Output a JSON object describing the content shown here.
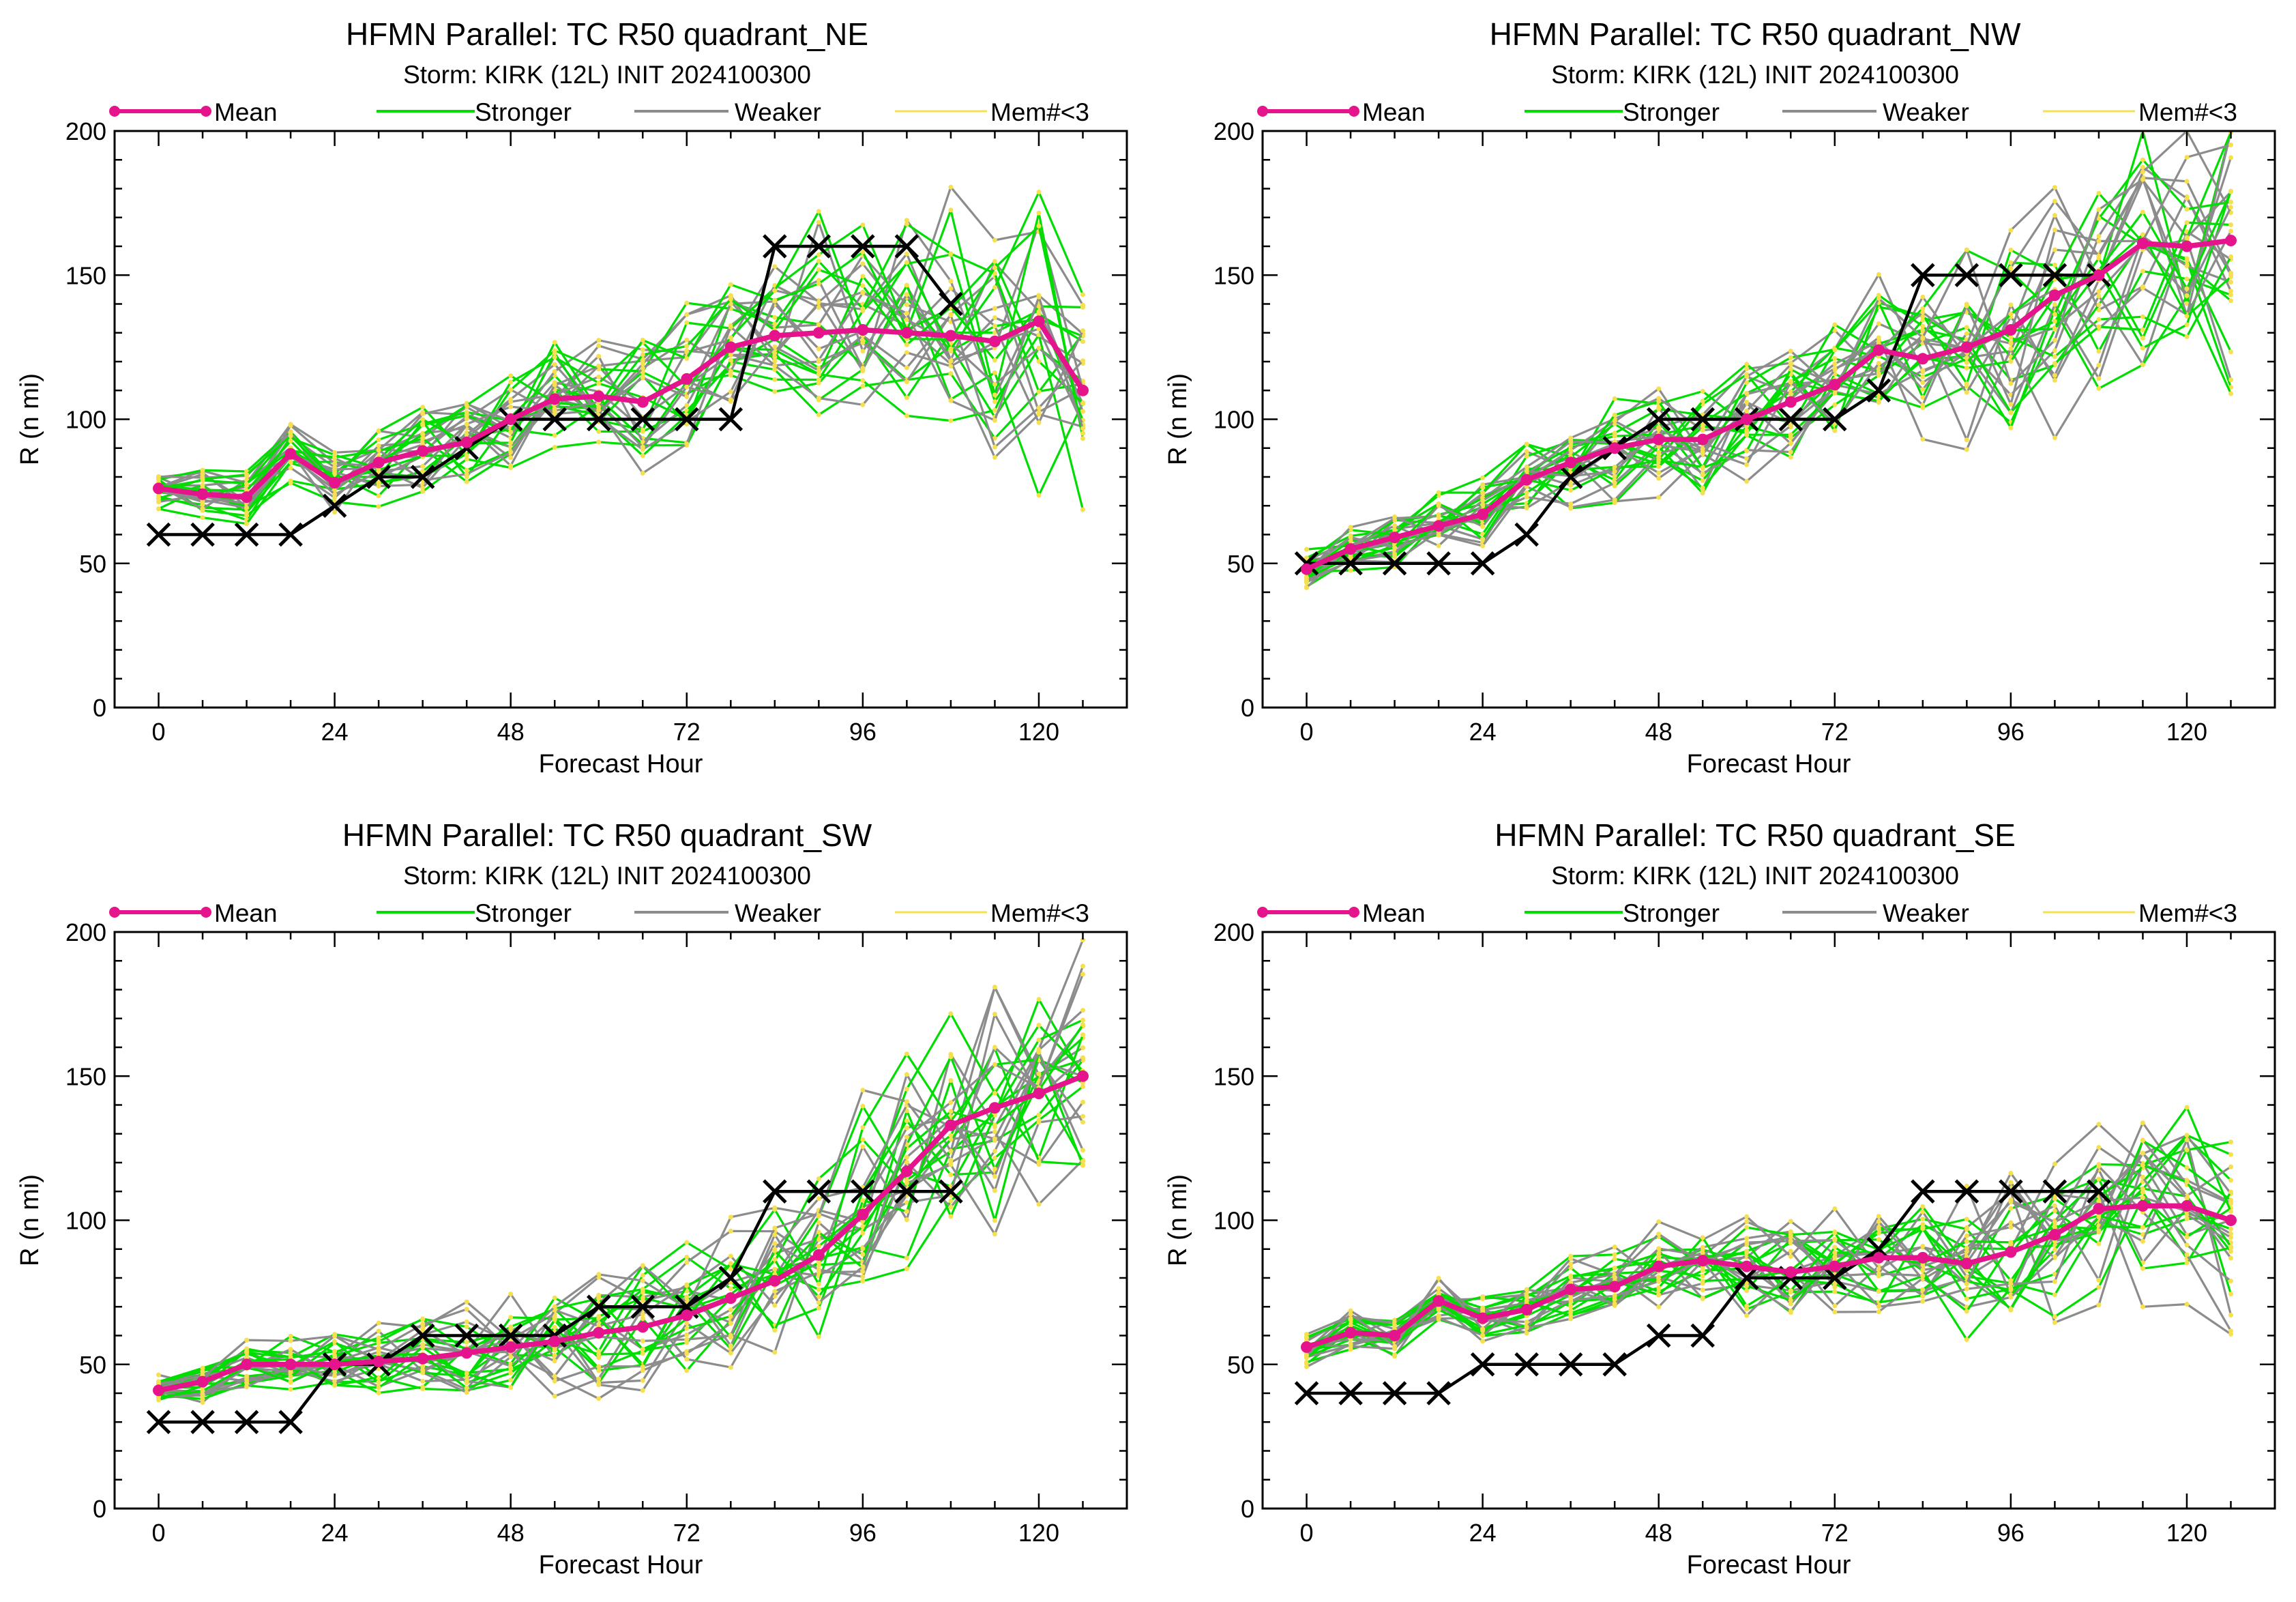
{
  "legend_labels": {
    "mean": "Mean",
    "stronger": "Stronger",
    "weaker": "Weaker",
    "mem": "Mem#<3"
  },
  "colors": {
    "mean": "#e6148c",
    "stronger": "#00dd00",
    "weaker": "#8c8c8c",
    "mem": "#f5e050",
    "best_track": "#000000"
  },
  "chart_data": [
    {
      "type": "line",
      "title": "HFMN Parallel: TC  R50 quadrant_NE",
      "subtitle": "Storm: KIRK (12L) INIT 2024100300",
      "xlabel": "Forecast Hour",
      "ylabel": "R (n mi)",
      "xlim": [
        -6,
        132
      ],
      "ylim": [
        0,
        200
      ],
      "xticks": [
        0,
        24,
        48,
        72,
        96,
        120
      ],
      "yticks": [
        0,
        50,
        100,
        150,
        200
      ],
      "x": [
        0,
        6,
        12,
        18,
        24,
        30,
        36,
        42,
        48,
        54,
        60,
        66,
        72,
        78,
        84,
        90,
        96,
        102,
        108,
        114,
        120,
        126
      ],
      "series": [
        {
          "name": "Mean",
          "values": [
            76,
            74,
            73,
            88,
            78,
            85,
            89,
            92,
            100,
            107,
            108,
            106,
            114,
            125,
            129,
            130,
            131,
            130,
            129,
            127,
            134,
            110
          ]
        }
      ],
      "best_track": {
        "x": [
          0,
          6,
          12,
          18,
          24,
          30,
          36,
          42,
          48,
          54,
          60,
          66,
          72,
          78,
          84,
          90,
          96,
          102,
          108
        ],
        "values": [
          60,
          60,
          60,
          60,
          70,
          80,
          80,
          90,
          100,
          100,
          100,
          100,
          100,
          100,
          160,
          160,
          160,
          160,
          140
        ]
      },
      "ensemble": {
        "members": 26,
        "spread_start": 5,
        "spread_end": 30,
        "spread_max": 45,
        "seed": 11
      }
    },
    {
      "type": "line",
      "title": "HFMN Parallel: TC  R50 quadrant_NW",
      "subtitle": "Storm: KIRK (12L) INIT 2024100300",
      "xlabel": "Forecast Hour",
      "ylabel": "R (n mi)",
      "xlim": [
        -6,
        132
      ],
      "ylim": [
        0,
        200
      ],
      "xticks": [
        0,
        24,
        48,
        72,
        96,
        120
      ],
      "yticks": [
        0,
        50,
        100,
        150,
        200
      ],
      "x": [
        0,
        6,
        12,
        18,
        24,
        30,
        36,
        42,
        48,
        54,
        60,
        66,
        72,
        78,
        84,
        90,
        96,
        102,
        108,
        114,
        120,
        126
      ],
      "series": [
        {
          "name": "Mean",
          "values": [
            48,
            55,
            59,
            63,
            67,
            79,
            85,
            90,
            93,
            93,
            100,
            106,
            112,
            124,
            121,
            125,
            131,
            143,
            150,
            161,
            160,
            162
          ]
        }
      ],
      "best_track": {
        "x": [
          0,
          6,
          12,
          18,
          24,
          30,
          36,
          42,
          48,
          54,
          60,
          66,
          72,
          78,
          84,
          90,
          96,
          102,
          108
        ],
        "values": [
          50,
          50,
          50,
          50,
          50,
          60,
          80,
          90,
          100,
          100,
          100,
          100,
          100,
          110,
          150,
          150,
          150,
          150,
          150
        ]
      },
      "ensemble": {
        "members": 26,
        "spread_start": 5,
        "spread_end": 30,
        "spread_max": 40,
        "seed": 23
      }
    },
    {
      "type": "line",
      "title": "HFMN Parallel: TC  R50 quadrant_SW",
      "subtitle": "Storm: KIRK (12L) INIT 2024100300",
      "xlabel": "Forecast Hour",
      "ylabel": "R (n mi)",
      "xlim": [
        -6,
        132
      ],
      "ylim": [
        0,
        200
      ],
      "xticks": [
        0,
        24,
        48,
        72,
        96,
        120
      ],
      "yticks": [
        0,
        50,
        100,
        150,
        200
      ],
      "x": [
        0,
        6,
        12,
        18,
        24,
        30,
        36,
        42,
        48,
        54,
        60,
        66,
        72,
        78,
        84,
        90,
        96,
        102,
        108,
        114,
        120,
        126
      ],
      "series": [
        {
          "name": "Mean",
          "values": [
            41,
            44,
            50,
            50,
            50,
            51,
            52,
            54,
            56,
            58,
            61,
            63,
            67,
            73,
            79,
            88,
            102,
            117,
            133,
            139,
            144,
            150
          ]
        }
      ],
      "best_track": {
        "x": [
          0,
          6,
          12,
          18,
          24,
          30,
          36,
          42,
          48,
          54,
          60,
          66,
          72,
          78,
          84,
          90,
          96,
          102,
          108
        ],
        "values": [
          30,
          30,
          30,
          30,
          50,
          50,
          60,
          60,
          60,
          60,
          70,
          70,
          70,
          80,
          110,
          110,
          110,
          110,
          110
        ]
      },
      "ensemble": {
        "members": 26,
        "spread_start": 4,
        "spread_end": 30,
        "spread_max": 40,
        "seed": 37
      }
    },
    {
      "type": "line",
      "title": "HFMN Parallel: TC  R50 quadrant_SE",
      "subtitle": "Storm: KIRK (12L) INIT 2024100300",
      "xlabel": "Forecast Hour",
      "ylabel": "R (n mi)",
      "xlim": [
        -6,
        132
      ],
      "ylim": [
        0,
        200
      ],
      "xticks": [
        0,
        24,
        48,
        72,
        96,
        120
      ],
      "yticks": [
        0,
        50,
        100,
        150,
        200
      ],
      "x": [
        0,
        6,
        12,
        18,
        24,
        30,
        36,
        42,
        48,
        54,
        60,
        66,
        72,
        78,
        84,
        90,
        96,
        102,
        108,
        114,
        120,
        126
      ],
      "series": [
        {
          "name": "Mean",
          "values": [
            56,
            61,
            60,
            72,
            66,
            69,
            76,
            77,
            84,
            86,
            84,
            82,
            84,
            87,
            87,
            85,
            89,
            95,
            104,
            105,
            105,
            100
          ]
        }
      ],
      "best_track": {
        "x": [
          0,
          6,
          12,
          18,
          24,
          30,
          36,
          42,
          48,
          54,
          60,
          66,
          72,
          78,
          84,
          90,
          96,
          102,
          108
        ],
        "values": [
          40,
          40,
          40,
          40,
          50,
          50,
          50,
          50,
          60,
          60,
          80,
          80,
          80,
          90,
          110,
          110,
          110,
          110,
          110
        ]
      },
      "ensemble": {
        "members": 26,
        "spread_start": 5,
        "spread_end": 22,
        "spread_max": 35,
        "seed": 53
      }
    }
  ]
}
